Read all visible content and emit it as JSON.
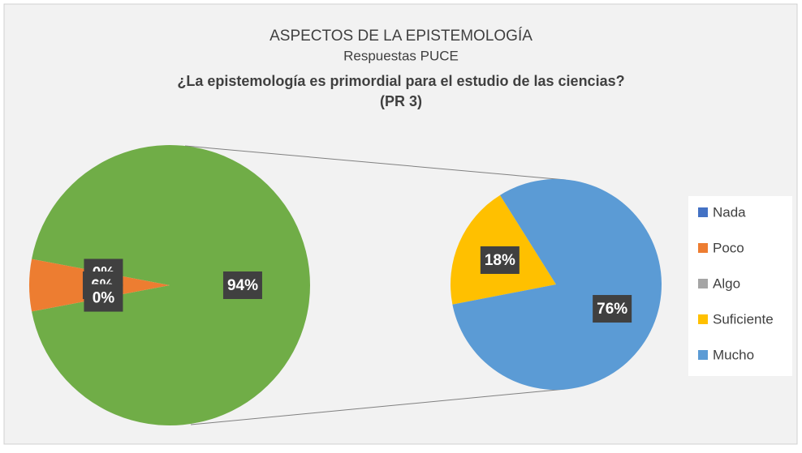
{
  "chart_data": {
    "type": "pie_of_pie",
    "title": "ASPECTOS DE LA EPISTEMOLOGÍA",
    "subtitle": "Respuestas PUCE",
    "question": "¿La epistemología es primordial para el estudio de las ciencias?",
    "code": "(PR 3)",
    "categories": [
      "Nada",
      "Poco",
      "Algo",
      "Suficiente",
      "Mucho"
    ],
    "values": [
      0,
      6,
      0,
      18,
      76
    ],
    "value_labels": [
      "0%",
      "6%",
      "0%",
      "18%",
      "76%"
    ],
    "colors": [
      "#4472c4",
      "#ed7d31",
      "#a5a5a5",
      "#ffc000",
      "#5b9bd5"
    ],
    "other_value": 94,
    "other_label": "94%",
    "other_color": "#70ad47",
    "secondary_count": 2,
    "legend": "right"
  }
}
